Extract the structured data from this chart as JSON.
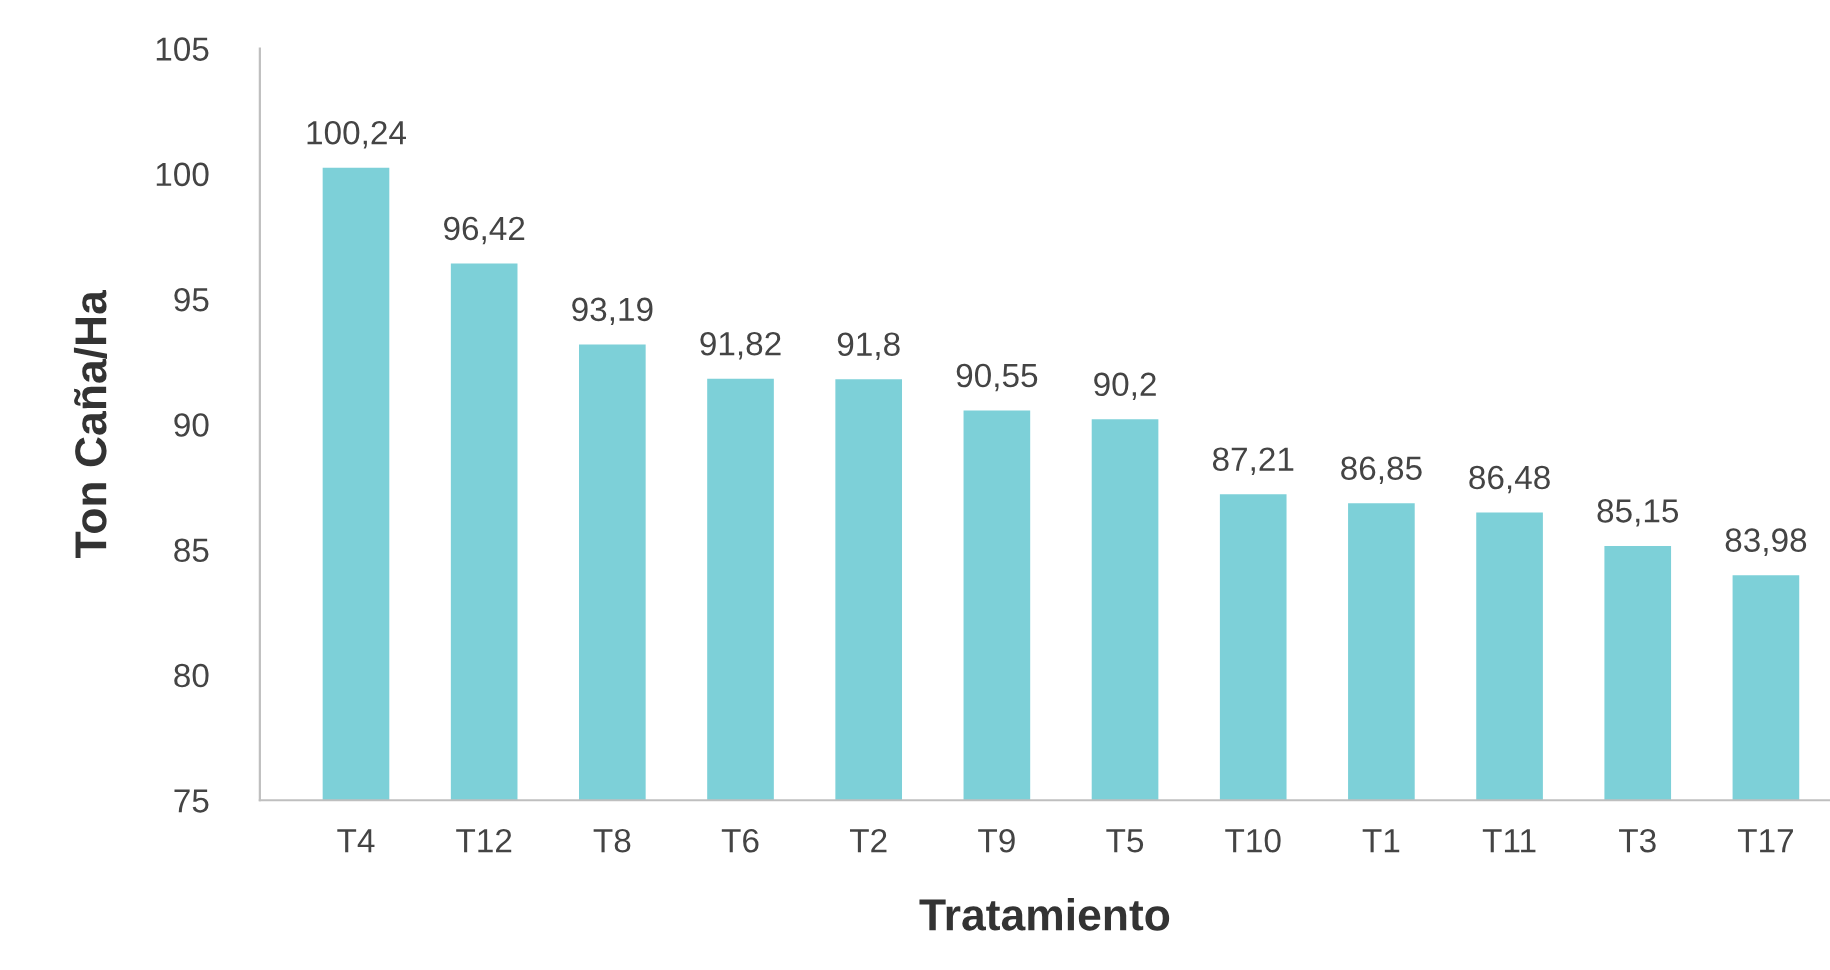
{
  "chart_data": {
    "type": "bar",
    "xlabel": "Tratamiento",
    "ylabel": "Ton Caña/Ha",
    "categories": [
      "T4",
      "T12",
      "T8",
      "T6",
      "T2",
      "T9",
      "T5",
      "T10",
      "T1",
      "T11",
      "T3",
      "T17"
    ],
    "values": [
      100.24,
      96.42,
      93.19,
      91.82,
      91.8,
      90.55,
      90.2,
      87.21,
      86.85,
      86.48,
      85.15,
      83.98
    ],
    "value_labels": [
      "100,24",
      "96,42",
      "93,19",
      "91,82",
      "91,8",
      "90,55",
      "90,2",
      "87,21",
      "86,85",
      "86,48",
      "85,15",
      "83,98"
    ],
    "color": "#7dd0d8",
    "ylim": [
      75,
      105
    ],
    "yticks": [
      75,
      80,
      85,
      90,
      95,
      100,
      105
    ],
    "grid": false,
    "legend": false
  }
}
